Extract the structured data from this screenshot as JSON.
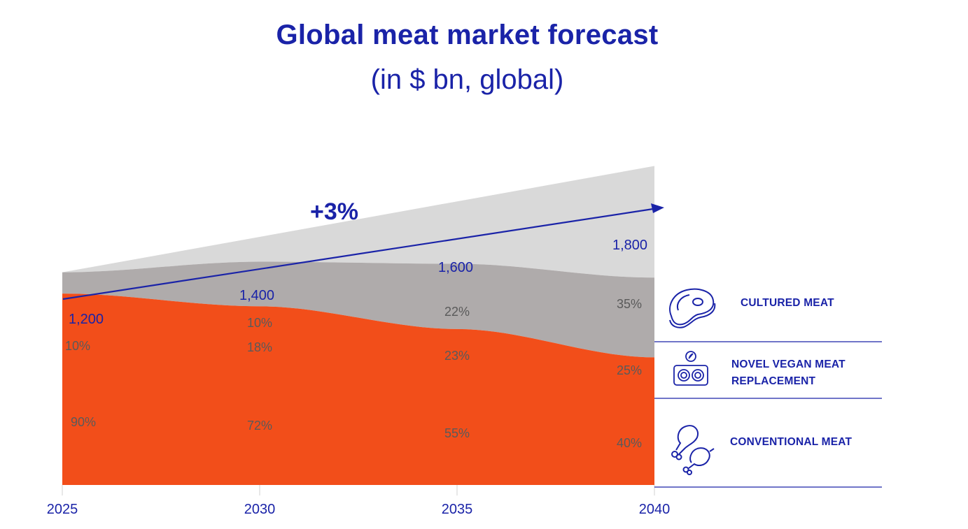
{
  "title": "Global meat market forecast",
  "subtitle": "(in $ bn, global)",
  "growth_label": "+3%",
  "colors": {
    "accent": "#1a23a8",
    "cultured": "#d9d9d9",
    "vegan": "#afabab",
    "conventional": "#f24e1a",
    "label_text": "#5a5a5a"
  },
  "legend": [
    {
      "label": "CULTURED MEAT",
      "icon": "steak-icon"
    },
    {
      "label": "NOVEL VEGAN MEAT REPLACEMENT",
      "icon": "vegan-patty-icon"
    },
    {
      "label": "CONVENTIONAL MEAT",
      "icon": "chicken-drumstick-icon"
    }
  ],
  "chart_data": {
    "type": "area",
    "stacked": true,
    "title": "Global meat market forecast",
    "subtitle": "(in $ bn, global)",
    "x": [
      "2025",
      "2030",
      "2035",
      "2040"
    ],
    "totals": [
      1200,
      1400,
      1600,
      1800
    ],
    "total_labels": [
      "1,200",
      "1,400",
      "1,600",
      "1,800"
    ],
    "growth_annotation": "+3%",
    "series": [
      {
        "name": "CONVENTIONAL MEAT",
        "shares": [
          90,
          72,
          55,
          40
        ],
        "labels": [
          "90%",
          "72%",
          "55%",
          "40%"
        ]
      },
      {
        "name": "NOVEL VEGAN MEAT REPLACEMENT",
        "shares": [
          10,
          18,
          23,
          25
        ],
        "labels": [
          "10%",
          "18%",
          "23%",
          "25%"
        ]
      },
      {
        "name": "CULTURED MEAT",
        "shares": [
          0,
          10,
          22,
          35
        ],
        "labels": [
          "",
          "10%",
          "22%",
          "35%"
        ]
      }
    ]
  }
}
